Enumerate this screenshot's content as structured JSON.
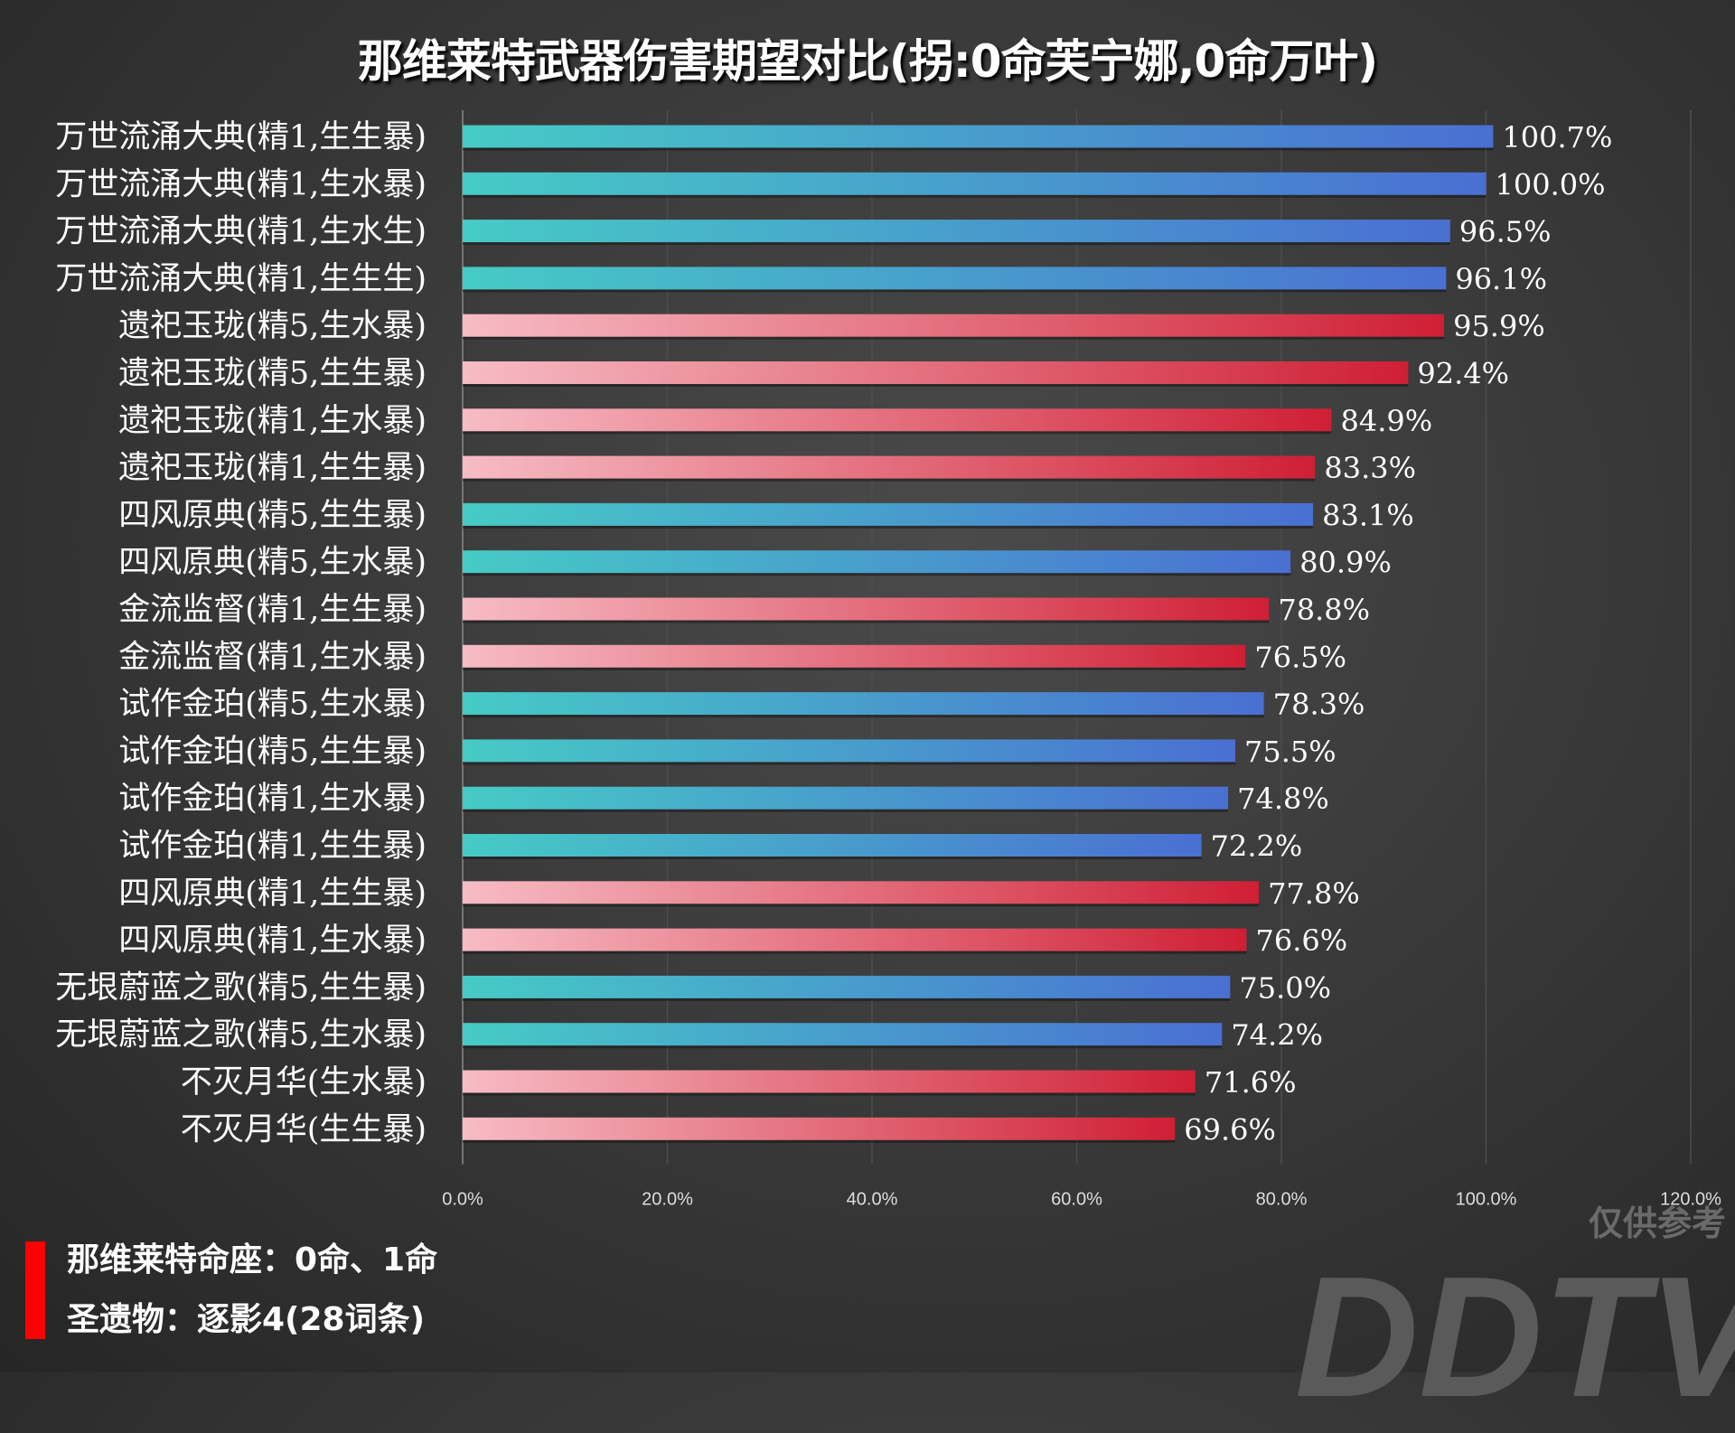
{
  "chart_data": {
    "type": "bar",
    "orientation": "horizontal",
    "title": "那维莱特武器伤害期望对比(拐:0命芙宁娜,0命万叶)",
    "categories": [
      "万世流涌大典(精1,生生暴)",
      "万世流涌大典(精1,生水暴)",
      "万世流涌大典(精1,生水生)",
      "万世流涌大典(精1,生生生)",
      "遗祀玉珑(精5,生水暴)",
      "遗祀玉珑(精5,生生暴)",
      "遗祀玉珑(精1,生水暴)",
      "遗祀玉珑(精1,生生暴)",
      "四风原典(精5,生生暴)",
      "四风原典(精5,生水暴)",
      "金流监督(精1,生生暴)",
      "金流监督(精1,生水暴)",
      "试作金珀(精5,生水暴)",
      "试作金珀(精5,生生暴)",
      "试作金珀(精1,生水暴)",
      "试作金珀(精1,生生暴)",
      "四风原典(精1,生生暴)",
      "四风原典(精1,生水暴)",
      "无垠蔚蓝之歌(精5,生生暴)",
      "无垠蔚蓝之歌(精5,生水暴)",
      "不灭月华(生水暴)",
      "不灭月华(生生暴)"
    ],
    "values": [
      100.7,
      100.0,
      96.5,
      96.1,
      95.9,
      92.4,
      84.9,
      83.3,
      83.1,
      80.9,
      78.8,
      76.5,
      78.3,
      75.5,
      74.8,
      72.2,
      77.8,
      76.6,
      75.0,
      74.2,
      71.6,
      69.6
    ],
    "data_labels": [
      "100.7%",
      "100.0%",
      "96.5%",
      "96.1%",
      "95.9%",
      "92.4%",
      "84.9%",
      "83.3%",
      "83.1%",
      "80.9%",
      "78.8%",
      "76.5%",
      "78.3%",
      "75.5%",
      "74.8%",
      "72.2%",
      "77.8%",
      "76.6%",
      "75.0%",
      "74.2%",
      "71.6%",
      "69.6%"
    ],
    "bar_color_group": [
      "blue",
      "blue",
      "blue",
      "blue",
      "red",
      "red",
      "red",
      "red",
      "blue",
      "blue",
      "red",
      "red",
      "blue",
      "blue",
      "blue",
      "blue",
      "red",
      "red",
      "blue",
      "blue",
      "red",
      "red"
    ],
    "colors": {
      "blue": [
        "#46cbc6",
        "#4a6fd2"
      ],
      "red": [
        "#f7bcc4",
        "#cf1f35"
      ]
    },
    "xlim": [
      0,
      120
    ],
    "xticks": [
      "0.0%",
      "20.0%",
      "40.0%",
      "60.0%",
      "80.0%",
      "100.0%",
      "120.0%"
    ],
    "grid": "vertical",
    "legend": "none"
  },
  "notes": {
    "line1": "那维莱特命座：0命、1命",
    "line2": "圣遗物：逐影4(28词条)"
  },
  "watermark": {
    "small": "仅供参考",
    "large": "DDTV"
  }
}
